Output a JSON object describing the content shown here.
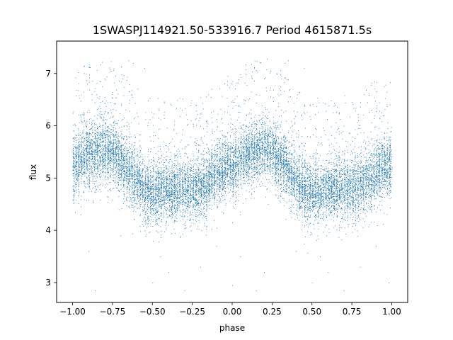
{
  "chart_data": {
    "type": "scatter",
    "title": "1SWASPJ114921.50-533916.7 Period 4615871.5s",
    "xlabel": "phase",
    "ylabel": "flux",
    "xlim": [
      -1.1,
      1.1
    ],
    "ylim": [
      2.62,
      7.62
    ],
    "xticks": [
      -1.0,
      -0.75,
      -0.5,
      -0.25,
      0.0,
      0.25,
      0.5,
      0.75,
      1.0
    ],
    "xtick_labels": [
      "−1.00",
      "−0.75",
      "−0.50",
      "−0.25",
      "0.00",
      "0.25",
      "0.50",
      "0.75",
      "1.00"
    ],
    "yticks": [
      3,
      4,
      5,
      6,
      7
    ],
    "ytick_labels": [
      "3",
      "4",
      "5",
      "6",
      "7"
    ],
    "grid": false,
    "marker_color": "#1f77b4",
    "points_note": "phase-folded light curve; dense cloud of points repeating with period 1 in phase",
    "trend": {
      "x": [
        0.0,
        0.05,
        0.1,
        0.15,
        0.2,
        0.25,
        0.3,
        0.35,
        0.4,
        0.45,
        0.5,
        0.55,
        0.6,
        0.65,
        0.7,
        0.75,
        0.8,
        0.85,
        0.9,
        0.95,
        1.0
      ],
      "y": [
        5.2,
        5.35,
        5.45,
        5.5,
        5.55,
        5.5,
        5.35,
        5.15,
        4.95,
        4.8,
        4.7,
        4.75,
        4.8,
        4.8,
        4.8,
        4.8,
        4.85,
        4.95,
        5.1,
        5.2,
        5.2
      ]
    },
    "spread": 0.3,
    "outliers": [
      [
        -0.88,
        6.5
      ],
      [
        -0.85,
        6.6
      ],
      [
        -0.8,
        6.9
      ],
      [
        -0.76,
        7.05
      ],
      [
        -0.73,
        6.3
      ],
      [
        -0.65,
        7.25
      ],
      [
        -0.62,
        7.2
      ],
      [
        -0.55,
        7.1
      ],
      [
        -0.9,
        3.6
      ],
      [
        -0.86,
        2.85
      ],
      [
        -0.7,
        3.9
      ],
      [
        -0.45,
        3.5
      ],
      [
        -0.4,
        3.2
      ],
      [
        -0.3,
        2.85
      ],
      [
        -0.2,
        3.3
      ],
      [
        -0.1,
        3.7
      ],
      [
        0.0,
        2.95
      ],
      [
        0.05,
        3.5
      ],
      [
        0.15,
        2.85
      ],
      [
        0.2,
        3.2
      ],
      [
        0.1,
        6.5
      ],
      [
        0.15,
        6.6
      ],
      [
        0.2,
        6.9
      ],
      [
        0.24,
        7.05
      ],
      [
        0.27,
        6.3
      ],
      [
        0.33,
        7.2
      ],
      [
        0.35,
        7.25
      ],
      [
        0.45,
        7.1
      ],
      [
        0.55,
        3.5
      ],
      [
        0.6,
        3.2
      ],
      [
        0.7,
        2.85
      ],
      [
        0.8,
        3.3
      ],
      [
        0.9,
        3.7
      ],
      [
        0.98,
        3.0
      ],
      [
        0.95,
        6.2
      ],
      [
        0.5,
        3.0
      ],
      [
        -0.5,
        3.0
      ],
      [
        -0.95,
        4.3
      ],
      [
        0.05,
        4.3
      ],
      [
        0.4,
        3.6
      ]
    ],
    "point_count": 14000,
    "seed": 7
  }
}
